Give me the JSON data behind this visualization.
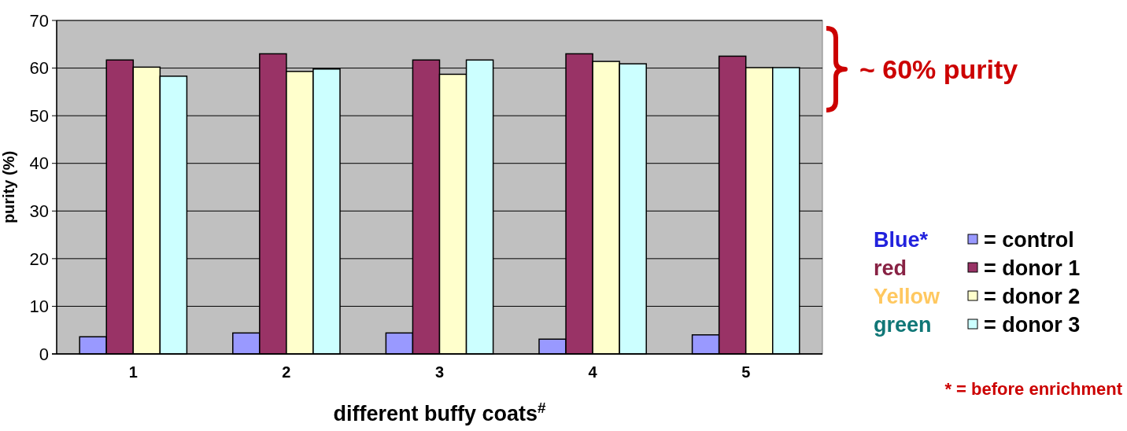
{
  "chart_data": {
    "type": "bar",
    "xlabel": "different buffy coats$^{#}$",
    "ylabel": "purity (%)",
    "categories": [
      "1",
      "2",
      "3",
      "4",
      "5"
    ],
    "series": [
      {
        "name": "= control",
        "color": "#9999ff",
        "values": [
          3.6,
          4.4,
          4.4,
          3.1,
          4.0
        ]
      },
      {
        "name": "= donor 1",
        "color": "#993366",
        "values": [
          61.7,
          63.0,
          61.7,
          63.0,
          62.5
        ]
      },
      {
        "name": "= donor 2",
        "color": "#ffffcc",
        "values": [
          60.2,
          59.3,
          58.7,
          61.4,
          60.1
        ]
      },
      {
        "name": "= donor 3",
        "color": "#ccffff",
        "values": [
          58.3,
          59.8,
          61.7,
          60.9,
          60.1
        ]
      }
    ],
    "ylim": [
      0,
      70
    ],
    "yticks": [
      0,
      10,
      20,
      30,
      40,
      50,
      60,
      70
    ],
    "grid": "y",
    "legend": "right",
    "annotations": [
      "Blue*",
      "red",
      "Yellow",
      "green",
      "* = before enrichment",
      "~ 60% purity"
    ]
  }
}
